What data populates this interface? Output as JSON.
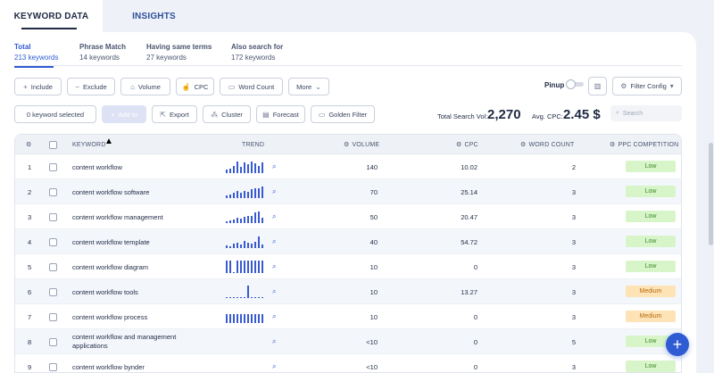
{
  "tabs": [
    {
      "label": "KEYWORD DATA"
    },
    {
      "label": "INSIGHTS"
    }
  ],
  "subtabs": [
    {
      "title": "Total",
      "count": "213 keywords"
    },
    {
      "title": "Phrase Match",
      "count": "14 keywords"
    },
    {
      "title": "Having same terms",
      "count": "27 keywords"
    },
    {
      "title": "Also search for",
      "count": "172 keywords"
    }
  ],
  "filters": {
    "include": "Include",
    "exclude": "Exclude",
    "volume": "Volume",
    "cpc": "CPC",
    "word_count": "Word Count",
    "more": "More"
  },
  "pinup": {
    "label": "Pinup"
  },
  "filter_config": "Filter Config",
  "actions": {
    "selected": "0 keyword selected",
    "add_to": "Add to",
    "export": "Export",
    "cluster": "Cluster",
    "forecast": "Forecast",
    "golden_filter": "Golden Filter"
  },
  "stats": {
    "total_label": "Total Search Vol:",
    "total_value": "2,270",
    "avg_label": "Avg. CPC:",
    "avg_value": "2.45 $"
  },
  "search": {
    "placeholder": "Search"
  },
  "columns": {
    "keyword": "KEYWORD",
    "trend": "TREND",
    "volume": "VOLUME",
    "cpc": "CPC",
    "word_count": "WORD COUNT",
    "ppc": "PPC COMPETITION"
  },
  "rows": [
    {
      "n": "1",
      "keyword": "content workflow",
      "volume": "140",
      "cpc": "10.02",
      "wc": "2",
      "ppc": "Low",
      "trend": [
        0.25,
        0.35,
        0.6,
        0.9,
        0.5,
        0.85,
        0.7,
        0.95,
        0.8,
        0.6,
        0.85
      ]
    },
    {
      "n": "2",
      "keyword": "content workflow software",
      "volume": "70",
      "cpc": "25.14",
      "wc": "3",
      "ppc": "Low",
      "trend": [
        0.2,
        0.3,
        0.45,
        0.55,
        0.4,
        0.6,
        0.5,
        0.7,
        0.8,
        0.75,
        0.9
      ]
    },
    {
      "n": "3",
      "keyword": "content workflow management",
      "volume": "50",
      "cpc": "20.47",
      "wc": "3",
      "ppc": "Low",
      "trend": [
        0.15,
        0.2,
        0.3,
        0.4,
        0.35,
        0.5,
        0.55,
        0.6,
        0.85,
        0.95,
        0.4
      ]
    },
    {
      "n": "4",
      "keyword": "content workflow template",
      "volume": "40",
      "cpc": "54.72",
      "wc": "3",
      "ppc": "Low",
      "trend": [
        0.2,
        0.15,
        0.35,
        0.4,
        0.3,
        0.55,
        0.45,
        0.35,
        0.5,
        0.9,
        0.3
      ]
    },
    {
      "n": "5",
      "keyword": "content workflow diagram",
      "volume": "10",
      "cpc": "0",
      "wc": "3",
      "ppc": "Low",
      "trend": [
        1,
        1,
        0.1,
        1,
        1,
        1,
        1,
        1,
        1,
        1,
        1
      ]
    },
    {
      "n": "6",
      "keyword": "content workflow tools",
      "volume": "10",
      "cpc": "13.27",
      "wc": "3",
      "ppc": "Medium",
      "trend": [
        0.08,
        0.08,
        0.08,
        0.08,
        0.08,
        0.08,
        1,
        0.08,
        0.08,
        0.08,
        0.08
      ]
    },
    {
      "n": "7",
      "keyword": "content workflow process",
      "volume": "10",
      "cpc": "0",
      "wc": "3",
      "ppc": "Medium",
      "trend": [
        0.7,
        0.7,
        0.7,
        0.7,
        0.7,
        0.7,
        0.7,
        0.7,
        0.7,
        0.7,
        0.7
      ]
    },
    {
      "n": "8",
      "keyword": "content workflow and management applications",
      "volume": "<10",
      "cpc": "0",
      "wc": "5",
      "ppc": "Low",
      "trend": []
    },
    {
      "n": "9",
      "keyword": "content workflow bynder",
      "volume": "<10",
      "cpc": "0",
      "wc": "3",
      "ppc": "Low",
      "trend": []
    }
  ],
  "colors": {
    "accent": "#2f5bd3",
    "bar": "#3a5bd0",
    "low_bg": "#d8f5c9",
    "medium_bg": "#fde3b5"
  },
  "icons": {
    "fab": "plus-icon",
    "search": "magnifier-icon"
  }
}
